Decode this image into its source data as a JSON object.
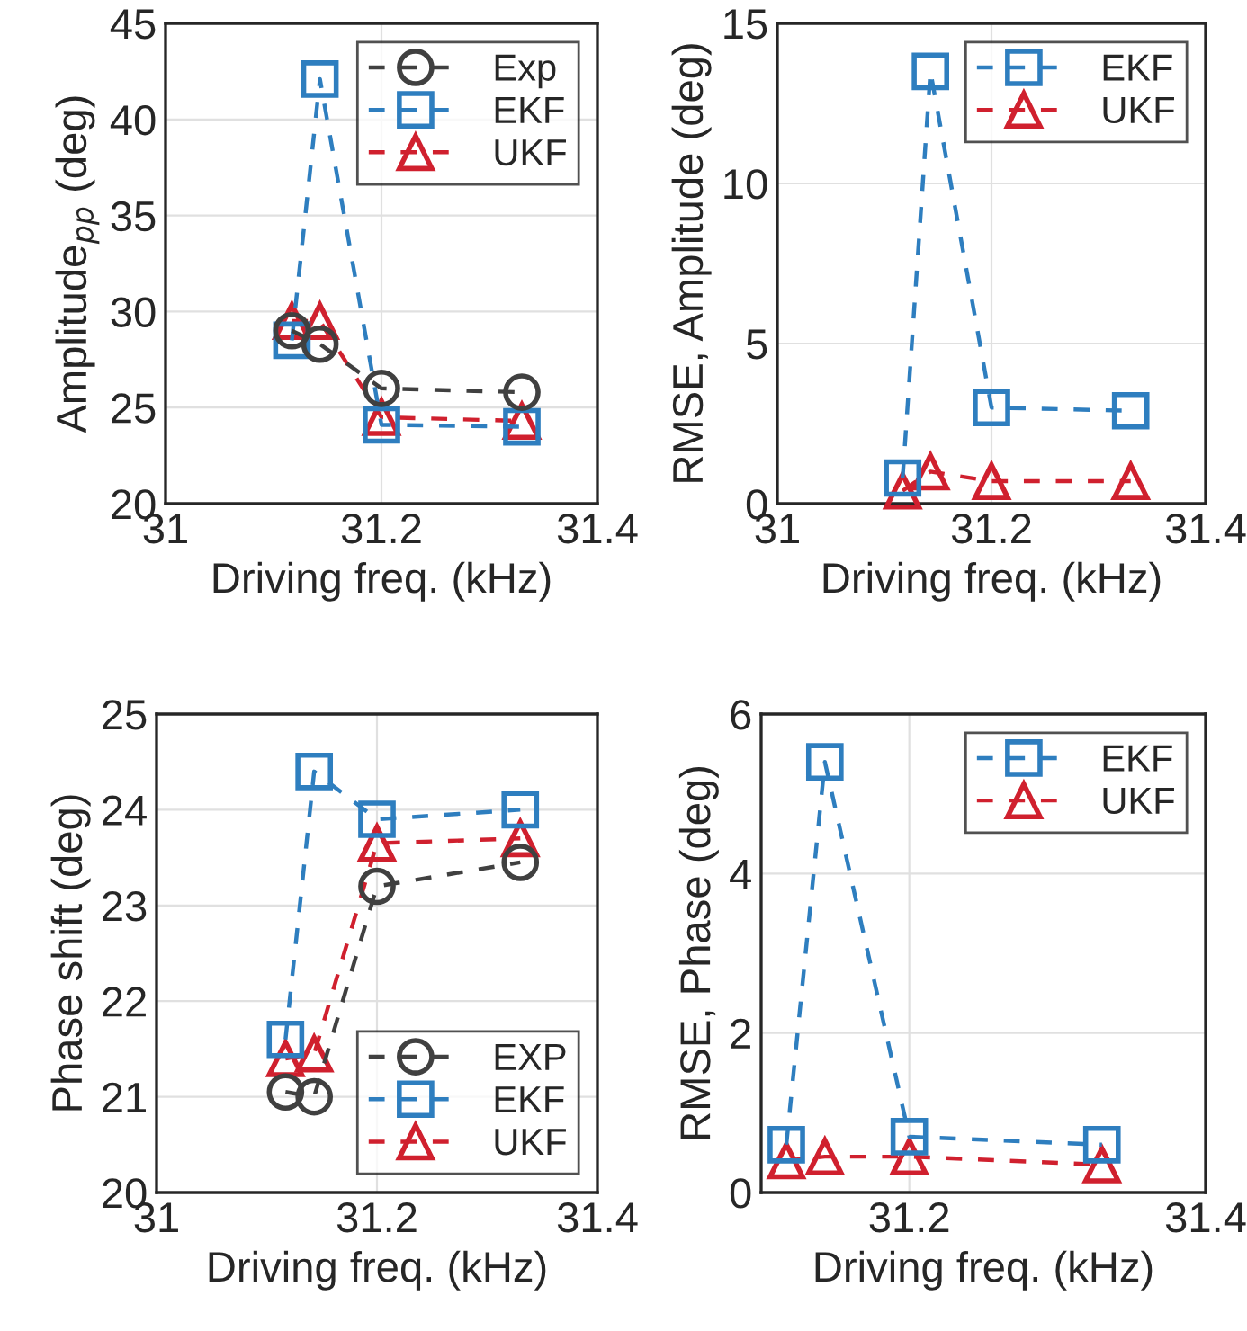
{
  "chart_data": [
    {
      "type": "line",
      "xlabel": "Driving freq. (kHz)",
      "ylabel": "Amplitude$_{pp}$ (deg)",
      "xlim": [
        31,
        31.4
      ],
      "xticks": [
        31,
        31.2,
        31.4
      ],
      "ylim": [
        20,
        45
      ],
      "yticks": [
        20,
        25,
        30,
        35,
        40,
        45
      ],
      "grid": true,
      "legend": "top right",
      "line_style": "dashed",
      "x": [
        31.117,
        31.143,
        31.2,
        31.33
      ],
      "series": [
        {
          "name": "Exp",
          "color": "#404040",
          "marker": "circle",
          "values": [
            29.0,
            28.3,
            26.0,
            25.8
          ]
        },
        {
          "name": "EKF",
          "color": "#2e7ebf",
          "marker": "square",
          "values": [
            28.5,
            42.1,
            24.1,
            24.0
          ]
        },
        {
          "name": "UKF",
          "color": "#d0202e",
          "marker": "triangle",
          "values": [
            29.5,
            29.5,
            24.5,
            24.3
          ]
        }
      ]
    },
    {
      "type": "line",
      "xlabel": "Driving freq. (kHz)",
      "ylabel": "RMSE, Amplitude (deg)",
      "xlim": [
        31,
        31.4
      ],
      "xticks": [
        31,
        31.2,
        31.4
      ],
      "ylim": [
        0,
        15
      ],
      "yticks": [
        0,
        5,
        10,
        15
      ],
      "grid": true,
      "legend": "top right",
      "line_style": "dashed",
      "x": [
        31.117,
        31.143,
        31.2,
        31.33
      ],
      "series": [
        {
          "name": "EKF",
          "color": "#2e7ebf",
          "marker": "square",
          "values": [
            0.8,
            13.5,
            3.0,
            2.9
          ]
        },
        {
          "name": "UKF",
          "color": "#d0202e",
          "marker": "triangle",
          "values": [
            0.4,
            1.0,
            0.7,
            0.7
          ]
        }
      ]
    },
    {
      "type": "line",
      "xlabel": "Driving freq. (kHz)",
      "ylabel": "Phase shift (deg)",
      "xlim": [
        31,
        31.4
      ],
      "xticks": [
        31,
        31.2,
        31.4
      ],
      "ylim": [
        20,
        25
      ],
      "yticks": [
        20,
        21,
        22,
        23,
        24,
        25
      ],
      "grid": true,
      "legend": "bottom right",
      "line_style": "dashed",
      "x": [
        31.117,
        31.143,
        31.2,
        31.33
      ],
      "series": [
        {
          "name": "EXP",
          "color": "#404040",
          "marker": "circle",
          "values": [
            21.05,
            21.0,
            23.2,
            23.45
          ]
        },
        {
          "name": "EKF",
          "color": "#2e7ebf",
          "marker": "square",
          "values": [
            21.6,
            24.4,
            23.9,
            24.0
          ]
        },
        {
          "name": "UKF",
          "color": "#d0202e",
          "marker": "triangle",
          "values": [
            21.4,
            21.45,
            23.65,
            23.7
          ]
        }
      ]
    },
    {
      "type": "line",
      "xlabel": "Driving freq. (kHz)",
      "ylabel": "RMSE, Phase (deg)",
      "xlim": [
        31.1,
        31.4
      ],
      "xticks": [
        31.2,
        31.4
      ],
      "ylim": [
        0,
        6
      ],
      "yticks": [
        0,
        2,
        4,
        6
      ],
      "grid": true,
      "legend": "top right",
      "line_style": "dashed",
      "x": [
        31.117,
        31.143,
        31.2,
        31.33
      ],
      "series": [
        {
          "name": "EKF",
          "color": "#2e7ebf",
          "marker": "square",
          "values": [
            0.6,
            5.4,
            0.7,
            0.6
          ]
        },
        {
          "name": "UKF",
          "color": "#d0202e",
          "marker": "triangle",
          "values": [
            0.4,
            0.45,
            0.45,
            0.35
          ]
        }
      ]
    }
  ]
}
